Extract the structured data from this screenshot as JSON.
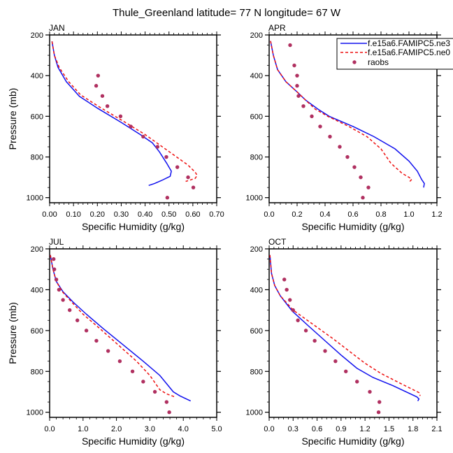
{
  "figure_title": "Thule_Greenland  latitude= 77 N longitude= 67 W",
  "legend": {
    "entries": [
      {
        "label": "f.e15a6.FAMIPC5.ne3",
        "style": "solid",
        "color": "#1010ee"
      },
      {
        "label": "f.e15a6.FAMIPC5.ne0",
        "style": "dashed",
        "color": "#ee1010"
      },
      {
        "label": "raobs",
        "style": "marker",
        "color": "#b03060"
      }
    ]
  },
  "chart_data": [
    {
      "type": "line",
      "panel": "JAN",
      "title": "JAN",
      "xlabel": "Specific Humidity (g/kg)",
      "ylabel": "Pressure (mb)",
      "xlim": [
        0,
        0.7
      ],
      "ylim": [
        200,
        1025
      ],
      "y_inverted": true,
      "xticks": [
        "0.00",
        "0.10",
        "0.20",
        "0.30",
        "0.40",
        "0.50",
        "0.60",
        "0.70"
      ],
      "xtick_values": [
        0,
        0.1,
        0.2,
        0.3,
        0.4,
        0.5,
        0.6,
        0.7
      ],
      "yticks": [
        "200",
        "400",
        "600",
        "800",
        "1000"
      ],
      "ytick_values": [
        200,
        400,
        600,
        800,
        1000
      ],
      "series": [
        {
          "name": "f.e15a6.FAMIPC5.ne3",
          "style": "solid",
          "points": [
            [
              0.01,
              232
            ],
            [
              0.02,
              300
            ],
            [
              0.035,
              360
            ],
            [
              0.07,
              430
            ],
            [
              0.125,
              502
            ],
            [
              0.2,
              560
            ],
            [
              0.3,
              630
            ],
            [
              0.38,
              690
            ],
            [
              0.43,
              730
            ],
            [
              0.46,
              775
            ],
            [
              0.49,
              830
            ],
            [
              0.51,
              870
            ],
            [
              0.505,
              895
            ],
            [
              0.47,
              915
            ],
            [
              0.44,
              930
            ],
            [
              0.415,
              940
            ]
          ]
        },
        {
          "name": "f.e15a6.FAMIPC5.ne0",
          "style": "dashed",
          "points": [
            [
              0.01,
              232
            ],
            [
              0.02,
              300
            ],
            [
              0.04,
              360
            ],
            [
              0.08,
              430
            ],
            [
              0.13,
              495
            ],
            [
              0.21,
              555
            ],
            [
              0.31,
              625
            ],
            [
              0.4,
              690
            ],
            [
              0.46,
              740
            ],
            [
              0.52,
              790
            ],
            [
              0.58,
              840
            ],
            [
              0.61,
              875
            ],
            [
              0.618,
              890
            ],
            [
              0.61,
              905
            ],
            [
              0.59,
              913
            ],
            [
              0.57,
              920
            ]
          ]
        },
        {
          "name": "raobs",
          "style": "marker",
          "points": [
            [
              0.203,
              400
            ],
            [
              0.195,
              450
            ],
            [
              0.221,
              500
            ],
            [
              0.242,
              550
            ],
            [
              0.297,
              600
            ],
            [
              0.34,
              650
            ],
            [
              0.392,
              700
            ],
            [
              0.452,
              750
            ],
            [
              0.489,
              800
            ],
            [
              0.535,
              850
            ],
            [
              0.58,
              900
            ],
            [
              0.602,
              950
            ],
            [
              0.493,
              1000
            ]
          ]
        }
      ]
    },
    {
      "type": "line",
      "panel": "APR",
      "title": "APR",
      "xlabel": "Specific Humidity (g/kg)",
      "ylabel": "",
      "xlim": [
        0,
        1.2
      ],
      "ylim": [
        200,
        1025
      ],
      "y_inverted": true,
      "xticks": [
        "0.0",
        "0.2",
        "0.4",
        "0.6",
        "0.8",
        "1.0",
        "1.2"
      ],
      "xtick_values": [
        0,
        0.2,
        0.4,
        0.6,
        0.8,
        1.0,
        1.2
      ],
      "yticks": [
        "200",
        "400",
        "600",
        "800",
        "1000"
      ],
      "ytick_values": [
        200,
        400,
        600,
        800,
        1000
      ],
      "series": [
        {
          "name": "f.e15a6.FAMIPC5.ne3",
          "style": "solid",
          "points": [
            [
              0.01,
              230
            ],
            [
              0.03,
              300
            ],
            [
              0.06,
              370
            ],
            [
              0.12,
              430
            ],
            [
              0.2,
              480
            ],
            [
              0.26,
              520
            ],
            [
              0.35,
              565
            ],
            [
              0.43,
              600
            ],
            [
              0.6,
              650
            ],
            [
              0.75,
              700
            ],
            [
              0.9,
              760
            ],
            [
              1.0,
              820
            ],
            [
              1.06,
              870
            ],
            [
              1.09,
              910
            ],
            [
              1.11,
              930
            ],
            [
              1.105,
              950
            ]
          ]
        },
        {
          "name": "f.e15a6.FAMIPC5.ne0",
          "style": "dashed",
          "points": [
            [
              0.01,
              230
            ],
            [
              0.03,
              300
            ],
            [
              0.06,
              370
            ],
            [
              0.12,
              430
            ],
            [
              0.2,
              480
            ],
            [
              0.26,
              520
            ],
            [
              0.33,
              565
            ],
            [
              0.42,
              600
            ],
            [
              0.57,
              650
            ],
            [
              0.7,
              700
            ],
            [
              0.8,
              760
            ],
            [
              0.87,
              830
            ],
            [
              0.95,
              880
            ],
            [
              1.0,
              900
            ],
            [
              1.02,
              910
            ],
            [
              1.0,
              925
            ]
          ]
        },
        {
          "name": "raobs",
          "style": "marker",
          "points": [
            [
              0.15,
              250
            ],
            [
              0.18,
              350
            ],
            [
              0.2,
              400
            ],
            [
              0.2,
              450
            ],
            [
              0.21,
              500
            ],
            [
              0.245,
              550
            ],
            [
              0.305,
              600
            ],
            [
              0.365,
              650
            ],
            [
              0.435,
              700
            ],
            [
              0.505,
              750
            ],
            [
              0.56,
              800
            ],
            [
              0.61,
              850
            ],
            [
              0.655,
              900
            ],
            [
              0.71,
              950
            ],
            [
              0.67,
              1000
            ]
          ]
        }
      ]
    },
    {
      "type": "line",
      "panel": "JUL",
      "title": "JUL",
      "xlabel": "Specific Humidity (g/kg)",
      "ylabel": "Pressure (mb)",
      "xlim": [
        0,
        5.0
      ],
      "ylim": [
        200,
        1025
      ],
      "y_inverted": true,
      "xticks": [
        "0.0",
        "1.0",
        "2.0",
        "3.0",
        "4.0",
        "5.0"
      ],
      "xtick_values": [
        0,
        1,
        2,
        3,
        4,
        5
      ],
      "yticks": [
        "200",
        "400",
        "600",
        "800",
        "1000"
      ],
      "ytick_values": [
        200,
        400,
        600,
        800,
        1000
      ],
      "series": [
        {
          "name": "f.e15a6.FAMIPC5.ne3",
          "style": "solid",
          "points": [
            [
              0.02,
              230
            ],
            [
              0.1,
              300
            ],
            [
              0.2,
              360
            ],
            [
              0.4,
              410
            ],
            [
              0.7,
              460
            ],
            [
              1.1,
              520
            ],
            [
              1.6,
              590
            ],
            [
              2.2,
              670
            ],
            [
              2.8,
              750
            ],
            [
              3.3,
              820
            ],
            [
              3.7,
              900
            ],
            [
              3.9,
              920
            ],
            [
              4.22,
              945
            ]
          ]
        },
        {
          "name": "f.e15a6.FAMIPC5.ne0",
          "style": "dashed",
          "points": [
            [
              0.02,
              230
            ],
            [
              0.1,
              300
            ],
            [
              0.2,
              360
            ],
            [
              0.38,
              410
            ],
            [
              0.66,
              460
            ],
            [
              1.0,
              520
            ],
            [
              1.5,
              590
            ],
            [
              2.05,
              670
            ],
            [
              2.6,
              750
            ],
            [
              3.0,
              820
            ],
            [
              3.3,
              890
            ],
            [
              3.5,
              910
            ],
            [
              3.75,
              925
            ]
          ]
        },
        {
          "name": "raobs",
          "style": "marker",
          "points": [
            [
              0.12,
              250
            ],
            [
              0.14,
              300
            ],
            [
              0.2,
              350
            ],
            [
              0.28,
              400
            ],
            [
              0.4,
              450
            ],
            [
              0.6,
              500
            ],
            [
              0.83,
              550
            ],
            [
              1.1,
              600
            ],
            [
              1.4,
              650
            ],
            [
              1.75,
              700
            ],
            [
              2.1,
              750
            ],
            [
              2.48,
              800
            ],
            [
              2.8,
              850
            ],
            [
              3.15,
              900
            ],
            [
              3.5,
              950
            ],
            [
              3.58,
              1000
            ]
          ]
        }
      ]
    },
    {
      "type": "line",
      "panel": "OCT",
      "title": "OCT",
      "xlabel": "Specific Humidity (g/kg)",
      "ylabel": "",
      "xlim": [
        0,
        2.1
      ],
      "ylim": [
        200,
        1025
      ],
      "y_inverted": true,
      "xticks": [
        "0.0",
        "0.3",
        "0.6",
        "0.9",
        "1.2",
        "1.5",
        "1.8",
        "2.1"
      ],
      "xtick_values": [
        0,
        0.3,
        0.6,
        0.9,
        1.2,
        1.5,
        1.8,
        2.1
      ],
      "yticks": [
        "200",
        "400",
        "600",
        "800",
        "1000"
      ],
      "ytick_values": [
        200,
        400,
        600,
        800,
        1000
      ],
      "series": [
        {
          "name": "f.e15a6.FAMIPC5.ne3",
          "style": "solid",
          "points": [
            [
              0.01,
              230
            ],
            [
              0.03,
              320
            ],
            [
              0.07,
              380
            ],
            [
              0.14,
              430
            ],
            [
              0.29,
              505
            ],
            [
              0.5,
              580
            ],
            [
              0.7,
              650
            ],
            [
              0.9,
              720
            ],
            [
              1.1,
              785
            ],
            [
              1.3,
              830
            ],
            [
              1.55,
              870
            ],
            [
              1.85,
              925
            ],
            [
              1.875,
              935
            ],
            [
              1.86,
              945
            ]
          ]
        },
        {
          "name": "f.e15a6.FAMIPC5.ne0",
          "style": "dashed",
          "points": [
            [
              0.01,
              230
            ],
            [
              0.03,
              320
            ],
            [
              0.07,
              380
            ],
            [
              0.14,
              430
            ],
            [
              0.3,
              500
            ],
            [
              0.55,
              570
            ],
            [
              0.8,
              640
            ],
            [
              1.0,
              700
            ],
            [
              1.2,
              760
            ],
            [
              1.4,
              810
            ],
            [
              1.65,
              860
            ],
            [
              1.88,
              905
            ],
            [
              1.89,
              920
            ]
          ]
        },
        {
          "name": "raobs",
          "style": "marker",
          "points": [
            [
              0.19,
              350
            ],
            [
              0.22,
              400
            ],
            [
              0.26,
              450
            ],
            [
              0.3,
              500
            ],
            [
              0.36,
              550
            ],
            [
              0.46,
              600
            ],
            [
              0.57,
              650
            ],
            [
              0.7,
              700
            ],
            [
              0.83,
              750
            ],
            [
              0.96,
              800
            ],
            [
              1.1,
              850
            ],
            [
              1.26,
              900
            ],
            [
              1.38,
              950
            ],
            [
              1.37,
              1000
            ]
          ]
        }
      ]
    }
  ]
}
